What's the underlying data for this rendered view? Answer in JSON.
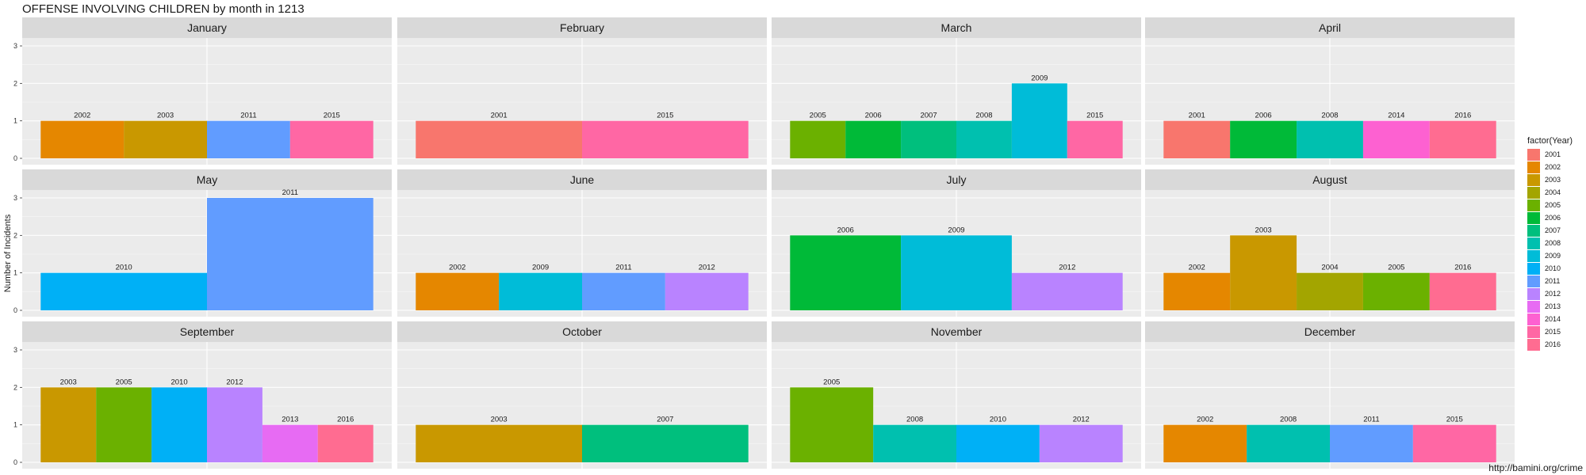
{
  "title": "OFFENSE INVOLVING CHILDREN by month in 1213",
  "ylabel": "Number of Incidents",
  "caption": "http://bamini.org/crime",
  "legend": {
    "title": "factor(Year)",
    "items": [
      {
        "year": "2001",
        "color": "#F8766D"
      },
      {
        "year": "2002",
        "color": "#E58700"
      },
      {
        "year": "2003",
        "color": "#C99800"
      },
      {
        "year": "2004",
        "color": "#A3A500"
      },
      {
        "year": "2005",
        "color": "#6BB100"
      },
      {
        "year": "2006",
        "color": "#00BA38"
      },
      {
        "year": "2007",
        "color": "#00BF7D"
      },
      {
        "year": "2008",
        "color": "#00C0AF"
      },
      {
        "year": "2009",
        "color": "#00BCD8"
      },
      {
        "year": "2010",
        "color": "#00B0F6"
      },
      {
        "year": "2011",
        "color": "#619CFF"
      },
      {
        "year": "2012",
        "color": "#B983FF"
      },
      {
        "year": "2013",
        "color": "#E76BF3"
      },
      {
        "year": "2014",
        "color": "#FD61D1"
      },
      {
        "year": "2015",
        "color": "#FF67A4"
      },
      {
        "year": "2016",
        "color": "#FF6C91"
      }
    ]
  },
  "chart_data": {
    "type": "bar",
    "ylim": [
      0,
      3
    ],
    "yticks": [
      0,
      1,
      2,
      3
    ],
    "grid": true,
    "legend_position": "right",
    "panels": [
      {
        "month": "January",
        "bars": [
          {
            "year": "2002",
            "value": 1
          },
          {
            "year": "2003",
            "value": 1
          },
          {
            "year": "2011",
            "value": 1
          },
          {
            "year": "2015",
            "value": 1
          }
        ]
      },
      {
        "month": "February",
        "bars": [
          {
            "year": "2001",
            "value": 1
          },
          {
            "year": "2015",
            "value": 1
          }
        ]
      },
      {
        "month": "March",
        "bars": [
          {
            "year": "2005",
            "value": 1
          },
          {
            "year": "2006",
            "value": 1
          },
          {
            "year": "2007",
            "value": 1
          },
          {
            "year": "2008",
            "value": 1
          },
          {
            "year": "2009",
            "value": 2
          },
          {
            "year": "2015",
            "value": 1
          }
        ]
      },
      {
        "month": "April",
        "bars": [
          {
            "year": "2001",
            "value": 1
          },
          {
            "year": "2006",
            "value": 1
          },
          {
            "year": "2008",
            "value": 1
          },
          {
            "year": "2014",
            "value": 1
          },
          {
            "year": "2016",
            "value": 1
          }
        ]
      },
      {
        "month": "May",
        "bars": [
          {
            "year": "2010",
            "value": 1
          },
          {
            "year": "2011",
            "value": 3
          }
        ]
      },
      {
        "month": "June",
        "bars": [
          {
            "year": "2002",
            "value": 1
          },
          {
            "year": "2009",
            "value": 1
          },
          {
            "year": "2011",
            "value": 1
          },
          {
            "year": "2012",
            "value": 1
          }
        ]
      },
      {
        "month": "July",
        "bars": [
          {
            "year": "2006",
            "value": 2
          },
          {
            "year": "2009",
            "value": 2
          },
          {
            "year": "2012",
            "value": 1
          }
        ]
      },
      {
        "month": "August",
        "bars": [
          {
            "year": "2002",
            "value": 1
          },
          {
            "year": "2003",
            "value": 2
          },
          {
            "year": "2004",
            "value": 1
          },
          {
            "year": "2005",
            "value": 1
          },
          {
            "year": "2016",
            "value": 1
          }
        ]
      },
      {
        "month": "September",
        "bars": [
          {
            "year": "2003",
            "value": 2
          },
          {
            "year": "2005",
            "value": 2
          },
          {
            "year": "2010",
            "value": 2
          },
          {
            "year": "2012",
            "value": 2
          },
          {
            "year": "2013",
            "value": 1
          },
          {
            "year": "2016",
            "value": 1
          }
        ]
      },
      {
        "month": "October",
        "bars": [
          {
            "year": "2003",
            "value": 1
          },
          {
            "year": "2007",
            "value": 1
          }
        ]
      },
      {
        "month": "November",
        "bars": [
          {
            "year": "2005",
            "value": 2
          },
          {
            "year": "2008",
            "value": 1
          },
          {
            "year": "2010",
            "value": 1
          },
          {
            "year": "2012",
            "value": 1
          }
        ]
      },
      {
        "month": "December",
        "bars": [
          {
            "year": "2002",
            "value": 1
          },
          {
            "year": "2008",
            "value": 1
          },
          {
            "year": "2011",
            "value": 1
          },
          {
            "year": "2015",
            "value": 1
          }
        ]
      }
    ]
  }
}
